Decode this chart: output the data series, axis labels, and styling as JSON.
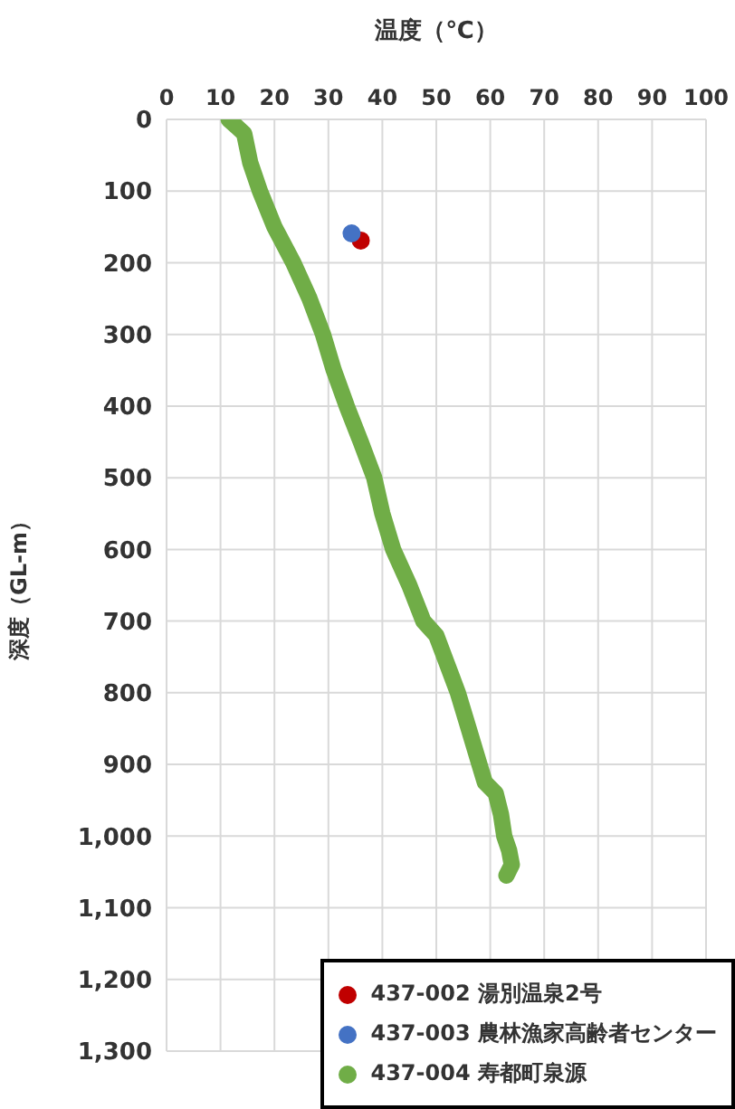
{
  "chart_data": {
    "type": "scatter",
    "xlabel": "温度（℃）",
    "ylabel": "深度（GL-m）",
    "xlim": [
      0,
      100
    ],
    "xticks": [
      0,
      10,
      20,
      30,
      40,
      50,
      60,
      70,
      80,
      90,
      100
    ],
    "ylim": [
      1300,
      0
    ],
    "yticks": [
      0,
      100,
      200,
      300,
      400,
      500,
      600,
      700,
      800,
      900,
      {
        "value": 1000,
        "label": "1,000"
      },
      {
        "value": 1100,
        "label": "1,100"
      },
      {
        "value": 1200,
        "label": "1,200"
      },
      {
        "value": 1300,
        "label": "1,300"
      }
    ],
    "grid": true,
    "legend": "bottom right",
    "marker": "circle",
    "series": [
      {
        "name": "437-002 湯別温泉2号",
        "color": "#c00000",
        "x": [
          36
        ],
        "values": [
          169
        ]
      },
      {
        "name": "437-003 農林漁家高齢者センター",
        "color": "#4472c4",
        "x": [
          34.3
        ],
        "values": [
          159
        ]
      },
      {
        "name": "437-004 寿都町泉源",
        "color": "#70ad47",
        "type": "line",
        "marker": "none",
        "line_style": "solid",
        "x": [
          11.5,
          13,
          14.4,
          15.5,
          17.3,
          20,
          23.5,
          26.5,
          29,
          31,
          33.4,
          36,
          38.5,
          40,
          42,
          45,
          47.6,
          50,
          52,
          54,
          56,
          58,
          59,
          61,
          62,
          62.6,
          63.5,
          64,
          63
        ],
        "values": [
          0,
          10,
          20,
          60,
          100,
          150,
          200,
          250,
          300,
          350,
          400,
          450,
          500,
          550,
          600,
          650,
          700,
          720,
          760,
          800,
          850,
          900,
          925,
          940,
          970,
          1000,
          1020,
          1040,
          1055
        ]
      }
    ]
  }
}
